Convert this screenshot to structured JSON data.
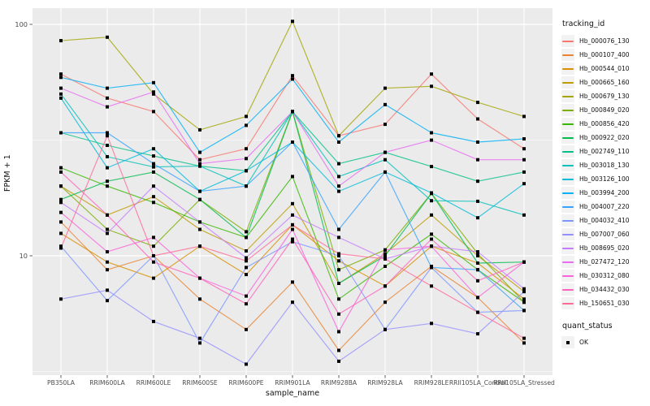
{
  "figure": {
    "y_axis_title": "FPKM + 1",
    "x_axis_title": "sample_name",
    "legend": {
      "tracking_title": "tracking_id",
      "quant_title": "quant_status",
      "quant_item": "OK"
    }
  },
  "colors": {
    "panel_bg": "#EBEBEB",
    "grid_major": "#FFFFFF",
    "grid_minor": "#F8F8F8",
    "tick_text": "#4D4D4D",
    "marker": "#000000",
    "key_bg": "#F2F2F2"
  },
  "chart_data": {
    "type": "line",
    "title": "",
    "xlabel": "sample_name",
    "ylabel": "FPKM + 1",
    "y_scale": "log10",
    "ylim": [
      3.05,
      117
    ],
    "grid": true,
    "legend_position": "right",
    "y_ticks": [
      {
        "value": 100,
        "label": "100"
      },
      {
        "value": 10,
        "label": "10"
      }
    ],
    "y_minor_gridlines": [
      3.162,
      31.62
    ],
    "categories": [
      "PB350LA",
      "RRIM600LA",
      "RRIM600LE",
      "RRIM600SE",
      "RRIM600PE",
      "RRIM901LA",
      "RRIM928BA",
      "RRIM928LA",
      "RRIM928LE",
      "RRII105LA_Control",
      "RRII105LA_Stressed"
    ],
    "quant_status_marker": "black-square",
    "series": [
      {
        "name": "Hb_000076_130",
        "color": "#F8766D",
        "values": [
          61,
          48,
          42,
          26,
          29,
          60,
          33,
          37,
          61,
          39,
          29
        ]
      },
      {
        "name": "Hb_000107_400",
        "color": "#EA8331",
        "values": [
          14,
          8.7,
          10,
          6.5,
          4.8,
          7.7,
          3.9,
          6.3,
          9,
          6.6,
          4.2
        ]
      },
      {
        "name": "Hb_000544_010",
        "color": "#D89000",
        "values": [
          12.5,
          9.4,
          8,
          11,
          8.3,
          13.6,
          9.5,
          7.4,
          11,
          9.3,
          6.5
        ]
      },
      {
        "name": "Hb_000665_160",
        "color": "#C09B00",
        "values": [
          20,
          15,
          18,
          13,
          10.5,
          16.8,
          7.6,
          10.2,
          15,
          10,
          7
        ]
      },
      {
        "name": "Hb_000679_130",
        "color": "#A3A500",
        "values": [
          85,
          88,
          50,
          35,
          40,
          103,
          33,
          53,
          54,
          46,
          40
        ]
      },
      {
        "name": "Hb_000849_020",
        "color": "#7CAE00",
        "values": [
          20,
          13,
          11,
          17.5,
          12.7,
          42,
          8.7,
          10.6,
          18.6,
          10.2,
          6.3
        ]
      },
      {
        "name": "Hb_000856_420",
        "color": "#39B600",
        "values": [
          24,
          20,
          17,
          14,
          12,
          22,
          6.5,
          9,
          12.4,
          8.7,
          6.3
        ]
      },
      {
        "name": "Hb_000922_020",
        "color": "#00BB4E",
        "values": [
          17.5,
          21,
          23,
          17.5,
          12,
          42,
          7.6,
          10,
          18.6,
          9.3,
          9.4
        ]
      },
      {
        "name": "Hb_002749_110",
        "color": "#00C087",
        "values": [
          34,
          30,
          27,
          24.4,
          23.3,
          42,
          25,
          28,
          24.3,
          21,
          23
        ]
      },
      {
        "name": "Hb_003018_130",
        "color": "#00C0B8",
        "values": [
          50,
          26.8,
          24.2,
          24.4,
          20,
          42,
          22,
          26,
          17.3,
          17.2,
          15
        ]
      },
      {
        "name": "Hb_003126_100",
        "color": "#00BCD8",
        "values": [
          48,
          24,
          29,
          19,
          23.3,
          31,
          19,
          23,
          18.7,
          14.6,
          20.5
        ]
      },
      {
        "name": "Hb_003994_200",
        "color": "#00B0F6",
        "values": [
          59,
          53,
          56,
          28,
          36.6,
          58,
          31,
          45,
          34,
          31,
          32
        ]
      },
      {
        "name": "Hb_004007_220",
        "color": "#35A2FF",
        "values": [
          34,
          34,
          25,
          19,
          20,
          31,
          13,
          23,
          8.9,
          8.7,
          5.8
        ]
      },
      {
        "name": "Hb_004032_410",
        "color": "#7C96FF",
        "values": [
          11,
          6.4,
          10,
          4.2,
          8.9,
          11.5,
          10,
          4.8,
          8.9,
          5.7,
          5.8
        ]
      },
      {
        "name": "Hb_007007_060",
        "color": "#9590FF",
        "values": [
          6.5,
          7.1,
          5.2,
          4.4,
          3.4,
          6.3,
          3.5,
          4.8,
          5.1,
          4.6,
          7
        ]
      },
      {
        "name": "Hb_008695_020",
        "color": "#C77CFF",
        "values": [
          17,
          12.5,
          20,
          14,
          9.8,
          15,
          12,
          9.7,
          11,
          10.4,
          7.2
        ]
      },
      {
        "name": "Hb_027472_120",
        "color": "#E76BF3",
        "values": [
          53,
          44,
          51,
          25,
          26.3,
          42,
          20,
          28,
          31.6,
          26,
          26
        ]
      },
      {
        "name": "Hb_030312_080",
        "color": "#FA62DB",
        "values": [
          15.4,
          10.4,
          12,
          8,
          6.7,
          13,
          4.7,
          10.6,
          11,
          6.6,
          9.4
        ]
      },
      {
        "name": "Hb_034432_030",
        "color": "#FF62BC",
        "values": [
          23,
          15,
          9.4,
          8,
          6.2,
          11.8,
          5.6,
          7.4,
          11.8,
          7.8,
          9.4
        ]
      },
      {
        "name": "Hb_150651_030",
        "color": "#FF6A98",
        "values": [
          10.8,
          33,
          10,
          11,
          9.5,
          13.6,
          10.2,
          9.7,
          7.4,
          5.7,
          4.4
        ]
      }
    ]
  }
}
